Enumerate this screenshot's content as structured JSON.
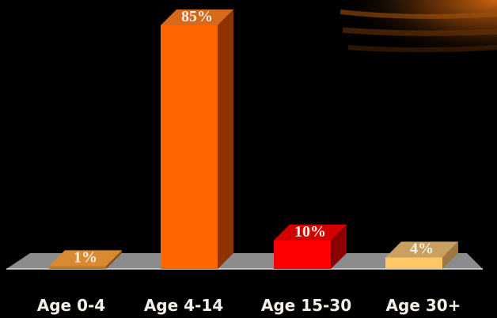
{
  "chart_data": {
    "type": "bar",
    "categories": [
      "Age 0-4",
      "Age 4-14",
      "Age 15-30",
      "Age 30+"
    ],
    "values": [
      1,
      85,
      10,
      4
    ],
    "value_labels": [
      "1%",
      "85%",
      "10%",
      "4%"
    ],
    "ylim": [
      0,
      85
    ],
    "colors": {
      "bar_fronts": [
        "#c9781e",
        "#ff6600",
        "#ff0000",
        "#ffc766"
      ],
      "bar_sides": [
        "#8a4d12",
        "#8c3300",
        "#8c0000",
        "#9c7840"
      ],
      "bar_tops": [
        "#d98a30",
        "#d66a1a",
        "#d40000",
        "#c9a060"
      ],
      "floor": "#8c8c8c",
      "background": "#000000"
    },
    "grid": false,
    "legend": "none",
    "style": "3d"
  }
}
